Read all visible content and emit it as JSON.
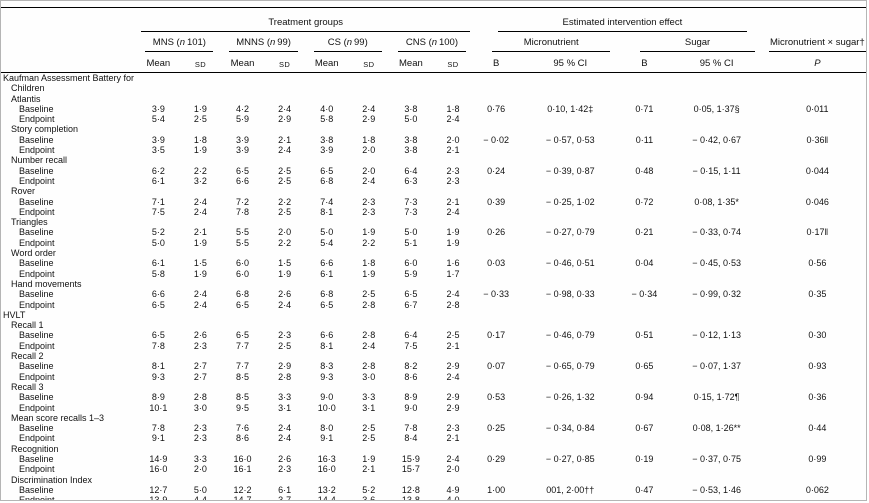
{
  "table": {
    "spanners": {
      "treatment_groups": "Treatment groups",
      "intervention_effect": "Estimated intervention effect",
      "interaction": "Micronutrient × sugar†"
    },
    "n_symbol": "n",
    "groups": [
      {
        "name": "MNS",
        "n": "101"
      },
      {
        "name": "MNNS",
        "n": "99"
      },
      {
        "name": "CS",
        "n": "99"
      },
      {
        "name": "CNS",
        "n": "100"
      }
    ],
    "effects": [
      "Micronutrient",
      "Sugar"
    ],
    "col_headers": {
      "mean": "Mean",
      "sd": "SD",
      "b": "B",
      "ci": "95 % CI",
      "p": "P"
    },
    "rows": [
      {
        "label": "Kaufman Assessment Battery for Children",
        "indent": 0
      },
      {
        "label": "Atlantis",
        "indent": 1
      },
      {
        "label": "Baseline",
        "indent": 2,
        "cells": [
          "3·9",
          "1·9",
          "4·2",
          "2·4",
          "4·0",
          "2·4",
          "3·8",
          "1·8",
          "0·76",
          "0·10, 1·42‡",
          "0·71",
          "0·05, 1·37§",
          "0·011"
        ]
      },
      {
        "label": "Endpoint",
        "indent": 2,
        "cells": [
          "5·4",
          "2·5",
          "5·9",
          "2·9",
          "5·8",
          "2·9",
          "5·0",
          "2·4"
        ]
      },
      {
        "label": "Story completion",
        "indent": 1
      },
      {
        "label": "Baseline",
        "indent": 2,
        "cells": [
          "3·9",
          "1·8",
          "3·9",
          "2·1",
          "3·8",
          "1·8",
          "3·8",
          "2·0",
          "− 0·02",
          "− 0·57, 0·53",
          "0·11",
          "− 0·42, 0·67",
          "0·36‖"
        ]
      },
      {
        "label": "Endpoint",
        "indent": 2,
        "cells": [
          "3·5",
          "1·9",
          "3·9",
          "2·4",
          "3·9",
          "2·0",
          "3·8",
          "2·1"
        ]
      },
      {
        "label": "Number recall",
        "indent": 1
      },
      {
        "label": "Baseline",
        "indent": 2,
        "cells": [
          "6·2",
          "2·2",
          "6·5",
          "2·5",
          "6·5",
          "2·0",
          "6·4",
          "2·3",
          "0·24",
          "− 0·39, 0·87",
          "0·48",
          "− 0·15, 1·11",
          "0·044"
        ]
      },
      {
        "label": "Endpoint",
        "indent": 2,
        "cells": [
          "6·1",
          "3·2",
          "6·6",
          "2·5",
          "6·8",
          "2·4",
          "6·3",
          "2·3"
        ]
      },
      {
        "label": "Rover",
        "indent": 1
      },
      {
        "label": "Baseline",
        "indent": 2,
        "cells": [
          "7·1",
          "2·4",
          "7·2",
          "2·2",
          "7·4",
          "2·3",
          "7·3",
          "2·1",
          "0·39",
          "− 0·25, 1·02",
          "0·72",
          "0·08, 1·35*",
          "0·046"
        ]
      },
      {
        "label": "Endpoint",
        "indent": 2,
        "cells": [
          "7·5",
          "2·4",
          "7·8",
          "2·5",
          "8·1",
          "2·3",
          "7·3",
          "2·4"
        ]
      },
      {
        "label": "Triangles",
        "indent": 1
      },
      {
        "label": "Baseline",
        "indent": 2,
        "cells": [
          "5·2",
          "2·1",
          "5·5",
          "2·0",
          "5·0",
          "1·9",
          "5·0",
          "1·9",
          "0·26",
          "− 0·27, 0·79",
          "0·21",
          "− 0·33, 0·74",
          "0·17‖"
        ]
      },
      {
        "label": "Endpoint",
        "indent": 2,
        "cells": [
          "5·0",
          "1·9",
          "5·5",
          "2·2",
          "5·4",
          "2·2",
          "5·1",
          "1·9"
        ]
      },
      {
        "label": "Word order",
        "indent": 1
      },
      {
        "label": "Baseline",
        "indent": 2,
        "cells": [
          "6·1",
          "1·5",
          "6·0",
          "1·5",
          "6·6",
          "1·8",
          "6·0",
          "1·6",
          "0·03",
          "− 0·46, 0·51",
          "0·04",
          "− 0·45, 0·53",
          "0·56"
        ]
      },
      {
        "label": "Endpoint",
        "indent": 2,
        "cells": [
          "5·8",
          "1·9",
          "6·0",
          "1·9",
          "6·1",
          "1·9",
          "5·9",
          "1·7"
        ]
      },
      {
        "label": "Hand movements",
        "indent": 1
      },
      {
        "label": "Baseline",
        "indent": 2,
        "cells": [
          "6·6",
          "2·4",
          "6·8",
          "2·6",
          "6·8",
          "2·5",
          "6·5",
          "2·4",
          "− 0·33",
          "− 0·98, 0·33",
          "− 0·34",
          "− 0·99, 0·32",
          "0·35"
        ]
      },
      {
        "label": "Endpoint",
        "indent": 2,
        "cells": [
          "6·5",
          "2·4",
          "6·5",
          "2·4",
          "6·5",
          "2·8",
          "6·7",
          "2·8"
        ]
      },
      {
        "label": "HVLT",
        "indent": 0
      },
      {
        "label": "Recall 1",
        "indent": 1
      },
      {
        "label": "Baseline",
        "indent": 2,
        "cells": [
          "6·5",
          "2·6",
          "6·5",
          "2·3",
          "6·6",
          "2·8",
          "6·4",
          "2·5",
          "0·17",
          "− 0·46, 0·79",
          "0·51",
          "− 0·12, 1·13",
          "0·30"
        ]
      },
      {
        "label": "Endpoint",
        "indent": 2,
        "cells": [
          "7·8",
          "2·3",
          "7·7",
          "2·5",
          "8·1",
          "2·4",
          "7·5",
          "2·1"
        ]
      },
      {
        "label": "Recall 2",
        "indent": 1
      },
      {
        "label": "Baseline",
        "indent": 2,
        "cells": [
          "8·1",
          "2·7",
          "7·7",
          "2·9",
          "8·3",
          "2·8",
          "8·2",
          "2·9",
          "0·07",
          "− 0·65, 0·79",
          "0·65",
          "− 0·07, 1·37",
          "0·93"
        ]
      },
      {
        "label": "Endpoint",
        "indent": 2,
        "cells": [
          "9·3",
          "2·7",
          "8·5",
          "2·8",
          "9·3",
          "3·0",
          "8·6",
          "2·4"
        ]
      },
      {
        "label": "Recall 3",
        "indent": 1
      },
      {
        "label": "Baseline",
        "indent": 2,
        "cells": [
          "8·9",
          "2·8",
          "8·5",
          "3·3",
          "9·0",
          "3·3",
          "8·9",
          "2·9",
          "0·53",
          "− 0·26, 1·32",
          "0·94",
          "0·15, 1·72¶",
          "0·36"
        ]
      },
      {
        "label": "Endpoint",
        "indent": 2,
        "cells": [
          "10·1",
          "3·0",
          "9·5",
          "3·1",
          "10·0",
          "3·1",
          "9·0",
          "2·9"
        ]
      },
      {
        "label": "Mean score recalls 1–3",
        "indent": 1
      },
      {
        "label": "Baseline",
        "indent": 2,
        "cells": [
          "7·8",
          "2·3",
          "7·6",
          "2·4",
          "8·0",
          "2·5",
          "7·8",
          "2·3",
          "0·25",
          "− 0·34, 0·84",
          "0·67",
          "0·08, 1·26**",
          "0·44"
        ]
      },
      {
        "label": "Endpoint",
        "indent": 2,
        "cells": [
          "9·1",
          "2·3",
          "8·6",
          "2·4",
          "9·1",
          "2·5",
          "8·4",
          "2·1"
        ]
      },
      {
        "label": "Recognition",
        "indent": 1
      },
      {
        "label": "Baseline",
        "indent": 2,
        "cells": [
          "14·9",
          "3·3",
          "16·0",
          "2·6",
          "16·3",
          "1·9",
          "15·9",
          "2·4",
          "0·29",
          "− 0·27, 0·85",
          "0·19",
          "− 0·37, 0·75",
          "0·99"
        ]
      },
      {
        "label": "Endpoint",
        "indent": 2,
        "cells": [
          "16·0",
          "2·0",
          "16·1",
          "2·3",
          "16·0",
          "2·1",
          "15·7",
          "2·0"
        ]
      },
      {
        "label": "Discrimination Index",
        "indent": 1
      },
      {
        "label": "Baseline",
        "indent": 2,
        "cells": [
          "12·7",
          "5·0",
          "12·2",
          "6·1",
          "13·2",
          "5·2",
          "12·8",
          "4·9",
          "1·00",
          "001, 2·00††",
          "0·47",
          "− 0·53, 1·46",
          "0·062"
        ]
      },
      {
        "label": "Endpoint",
        "indent": 2,
        "cells": [
          "13·9",
          "4·4",
          "14·7",
          "3·7",
          "14·4",
          "3·6",
          "13·8",
          "4·0"
        ]
      }
    ]
  }
}
